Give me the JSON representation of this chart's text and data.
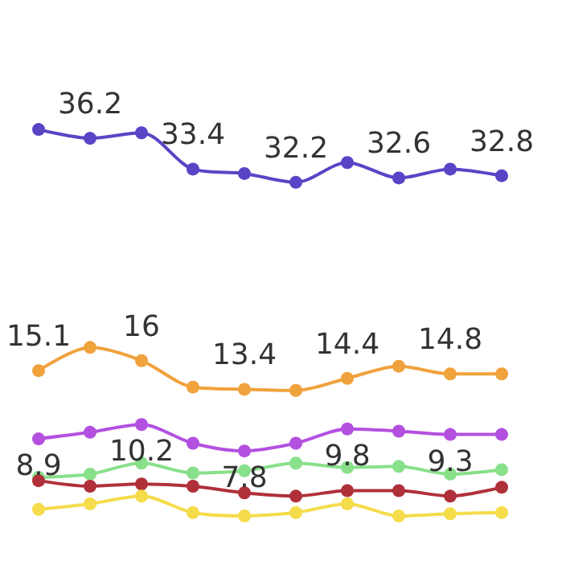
{
  "chart_data": {
    "type": "line",
    "marker": "circle",
    "tick_labels": false,
    "categories": [
      null,
      null,
      null,
      null,
      null,
      null,
      null,
      null,
      null,
      null
    ],
    "series": [
      {
        "color": "#5a44c6",
        "values": [
          37.0,
          36.2,
          36.7,
          33.4,
          33.0,
          32.2,
          34.0,
          32.6,
          33.4,
          32.8
        ],
        "value_labels": [
          null,
          "36.2",
          null,
          "33.4",
          null,
          "32.2",
          null,
          "32.6",
          null,
          "32.8"
        ]
      },
      {
        "color": "#f0a23c",
        "values": [
          15.1,
          17.2,
          16,
          13.6,
          13.4,
          13.3,
          14.4,
          15.5,
          14.8,
          14.8
        ],
        "value_labels": [
          "15.1",
          null,
          "16",
          null,
          "13.4",
          null,
          "14.4",
          null,
          "14.8",
          null
        ]
      },
      {
        "color": "#b450e0",
        "values": [
          8.9,
          9.5,
          10.2,
          8.5,
          7.8,
          8.5,
          9.8,
          9.6,
          9.3,
          9.3
        ],
        "value_labels": [
          "8.9",
          null,
          "10.2",
          null,
          "7.8",
          null,
          "9.8",
          null,
          "9.3",
          null
        ]
      },
      {
        "color": "#88e08a",
        "values": [
          5.4,
          5.7,
          6.7,
          5.8,
          6.0,
          6.7,
          6.3,
          6.4,
          5.7,
          6.1
        ]
      },
      {
        "color": "#b0303a",
        "values": [
          5.1,
          4.6,
          4.8,
          4.6,
          4.0,
          3.7,
          4.2,
          4.2,
          3.7,
          4.5
        ]
      },
      {
        "color": "#f5dc4a",
        "values": [
          2.5,
          3.0,
          3.7,
          2.2,
          1.9,
          2.2,
          3.0,
          1.9,
          2.1,
          2.2
        ]
      }
    ]
  }
}
